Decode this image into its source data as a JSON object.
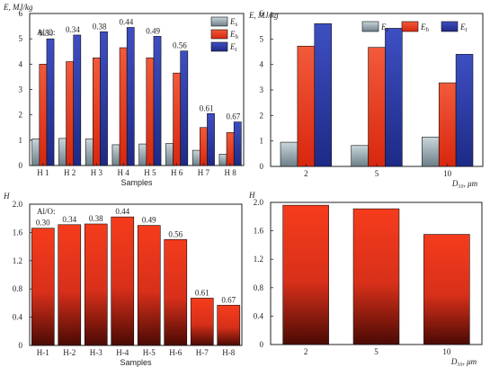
{
  "colors": {
    "Es": "#a9b8bf",
    "Eh": "#e8341c",
    "Et": "#2b3aa6",
    "red_top": "#f23a1a",
    "red_bottom": "#5a0d05"
  },
  "chart_data": [
    {
      "type": "bar",
      "ylabel": "E, MJ/kg",
      "xlabel": "Samples",
      "categories": [
        "H 1",
        "H 2",
        "H 3",
        "H 4",
        "H 5",
        "H 6",
        "H 7",
        "H 8"
      ],
      "ylim": [
        0,
        6
      ],
      "yticks": [
        "0",
        "1",
        "2",
        "3",
        "4",
        "5",
        "6"
      ],
      "legend": [
        "Es",
        "Eh",
        "Et"
      ],
      "legend_position": "top-right",
      "series": [
        {
          "name": "Es",
          "values": [
            1.05,
            1.07,
            1.05,
            0.82,
            0.85,
            0.87,
            0.6,
            0.45
          ]
        },
        {
          "name": "Eh",
          "values": [
            4.0,
            4.1,
            4.25,
            4.65,
            4.25,
            3.65,
            1.5,
            1.3
          ]
        },
        {
          "name": "Et",
          "values": [
            5.0,
            5.15,
            5.28,
            5.45,
            5.1,
            4.52,
            2.05,
            1.72
          ]
        }
      ],
      "annotation_title": "Al/O:",
      "annotations": [
        "0.30",
        "0.34",
        "0.38",
        "0.44",
        "0.49",
        "0.56",
        "0.61",
        "0.67"
      ]
    },
    {
      "type": "bar",
      "ylabel": "E, MJ/kg",
      "xlabel": "D₅₀, μm",
      "categories": [
        "2",
        "5",
        "10"
      ],
      "ylim": [
        0,
        6
      ],
      "yticks": [
        "0",
        "1",
        "2",
        "3",
        "4",
        "5",
        "6"
      ],
      "legend": [
        "Es",
        "Eh",
        "Et"
      ],
      "legend_position": "top",
      "series": [
        {
          "name": "Es",
          "values": [
            0.95,
            0.82,
            1.15
          ]
        },
        {
          "name": "Eh",
          "values": [
            4.72,
            4.67,
            3.28
          ]
        },
        {
          "name": "Et",
          "values": [
            5.6,
            5.42,
            4.4
          ]
        }
      ]
    },
    {
      "type": "bar",
      "ylabel": "H",
      "xlabel": "Samples",
      "categories": [
        "H-1",
        "H-2",
        "H-3",
        "H-4",
        "H-5",
        "H-6",
        "H-7",
        "H-8"
      ],
      "ylim": [
        0,
        2
      ],
      "yticks": [
        "0",
        "0.4",
        "0.8",
        "1.2",
        "1.6",
        "2.0"
      ],
      "series": [
        {
          "values": [
            1.66,
            1.71,
            1.72,
            1.82,
            1.7,
            1.5,
            0.67,
            0.57
          ]
        }
      ],
      "annotation_title": "Al/O:",
      "annotations": [
        "0.30",
        "0.34",
        "0.38",
        "0.44",
        "0.49",
        "0.56",
        "0.61",
        "0.67"
      ]
    },
    {
      "type": "bar",
      "ylabel": "H",
      "xlabel": "D₅₀, μm",
      "categories": [
        "2",
        "5",
        "10"
      ],
      "ylim": [
        0,
        2
      ],
      "yticks": [
        "0",
        "0.4",
        "0.8",
        "1.2",
        "1.6",
        "2.0"
      ],
      "series": [
        {
          "values": [
            1.96,
            1.91,
            1.55
          ]
        }
      ]
    }
  ]
}
